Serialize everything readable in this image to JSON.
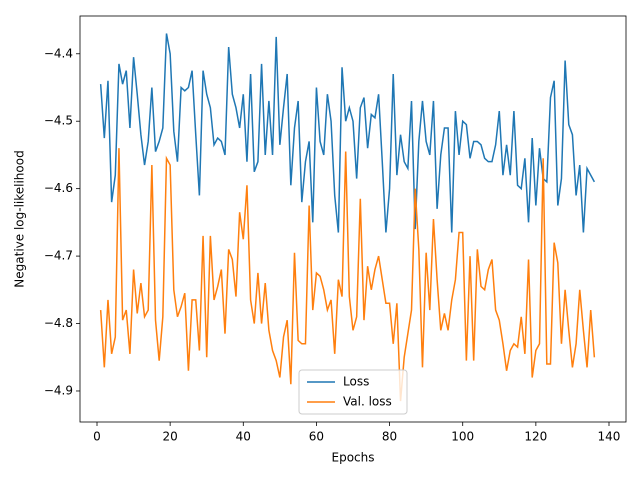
{
  "chart_data": {
    "type": "line",
    "xlabel": "Epochs",
    "ylabel": "Negative log-likelihood",
    "x": [
      1,
      2,
      3,
      4,
      5,
      6,
      7,
      8,
      9,
      10,
      11,
      12,
      13,
      14,
      15,
      16,
      17,
      18,
      19,
      20,
      21,
      22,
      23,
      24,
      25,
      26,
      27,
      28,
      29,
      30,
      31,
      32,
      33,
      34,
      35,
      36,
      37,
      38,
      39,
      40,
      41,
      42,
      43,
      44,
      45,
      46,
      47,
      48,
      49,
      50,
      51,
      52,
      53,
      54,
      55,
      56,
      57,
      58,
      59,
      60,
      61,
      62,
      63,
      64,
      65,
      66,
      67,
      68,
      69,
      70,
      71,
      72,
      73,
      74,
      75,
      76,
      77,
      78,
      79,
      80,
      81,
      82,
      83,
      84,
      85,
      86,
      87,
      88,
      89,
      90,
      91,
      92,
      93,
      94,
      95,
      96,
      97,
      98,
      99,
      100,
      101,
      102,
      103,
      104,
      105,
      106,
      107,
      108,
      109,
      110,
      111,
      112,
      113,
      114,
      115,
      116,
      117,
      118,
      119,
      120,
      121,
      122,
      123,
      124,
      125,
      126,
      127,
      128,
      129,
      130,
      131,
      132,
      133,
      134,
      135,
      136
    ],
    "series": [
      {
        "name": "Loss",
        "color": "#1f77b4",
        "values": [
          -4.445,
          -4.525,
          -4.44,
          -4.62,
          -4.58,
          -4.415,
          -4.445,
          -4.425,
          -4.51,
          -4.405,
          -4.46,
          -4.52,
          -4.565,
          -4.53,
          -4.45,
          -4.545,
          -4.53,
          -4.51,
          -4.37,
          -4.4,
          -4.515,
          -4.56,
          -4.45,
          -4.455,
          -4.45,
          -4.425,
          -4.52,
          -4.61,
          -4.425,
          -4.46,
          -4.48,
          -4.535,
          -4.525,
          -4.53,
          -4.55,
          -4.39,
          -4.46,
          -4.48,
          -4.51,
          -4.46,
          -4.56,
          -4.43,
          -4.575,
          -4.56,
          -4.415,
          -4.55,
          -4.47,
          -4.55,
          -4.375,
          -4.535,
          -4.48,
          -4.43,
          -4.595,
          -4.51,
          -4.47,
          -4.62,
          -4.56,
          -4.53,
          -4.65,
          -4.45,
          -4.53,
          -4.55,
          -4.46,
          -4.5,
          -4.61,
          -4.665,
          -4.42,
          -4.5,
          -4.48,
          -4.5,
          -4.585,
          -4.48,
          -4.465,
          -4.54,
          -4.49,
          -4.495,
          -4.46,
          -4.56,
          -4.665,
          -4.6,
          -4.43,
          -4.58,
          -4.52,
          -4.56,
          -4.57,
          -4.47,
          -4.66,
          -4.53,
          -4.47,
          -4.53,
          -4.55,
          -4.47,
          -4.63,
          -4.55,
          -4.51,
          -4.51,
          -4.665,
          -4.485,
          -4.55,
          -4.5,
          -4.505,
          -4.555,
          -4.53,
          -4.53,
          -4.535,
          -4.555,
          -4.56,
          -4.56,
          -4.535,
          -4.485,
          -4.58,
          -4.535,
          -4.58,
          -4.485,
          -4.595,
          -4.6,
          -4.555,
          -4.65,
          -4.525,
          -4.625,
          -4.54,
          -4.585,
          -4.59,
          -4.465,
          -4.44,
          -4.625,
          -4.585,
          -4.41,
          -4.505,
          -4.52,
          -4.61,
          -4.565,
          -4.665,
          -4.57,
          -4.58,
          -4.59
        ]
      },
      {
        "name": "Val. loss",
        "color": "#ff7f0e",
        "values": [
          -4.78,
          -4.865,
          -4.765,
          -4.845,
          -4.82,
          -4.54,
          -4.795,
          -4.78,
          -4.845,
          -4.72,
          -4.785,
          -4.74,
          -4.79,
          -4.78,
          -4.565,
          -4.795,
          -4.855,
          -4.79,
          -4.555,
          -4.565,
          -4.75,
          -4.79,
          -4.775,
          -4.755,
          -4.87,
          -4.765,
          -4.765,
          -4.84,
          -4.67,
          -4.85,
          -4.67,
          -4.765,
          -4.745,
          -4.72,
          -4.815,
          -4.69,
          -4.705,
          -4.76,
          -4.635,
          -4.675,
          -4.595,
          -4.765,
          -4.8,
          -4.725,
          -4.8,
          -4.74,
          -4.81,
          -4.84,
          -4.855,
          -4.88,
          -4.82,
          -4.795,
          -4.89,
          -4.695,
          -4.825,
          -4.83,
          -4.83,
          -4.625,
          -4.78,
          -4.725,
          -4.73,
          -4.75,
          -4.78,
          -4.765,
          -4.845,
          -4.735,
          -4.76,
          -4.545,
          -4.76,
          -4.81,
          -4.79,
          -4.615,
          -4.795,
          -4.715,
          -4.75,
          -4.72,
          -4.7,
          -4.735,
          -4.77,
          -4.77,
          -4.83,
          -4.77,
          -4.915,
          -4.85,
          -4.815,
          -4.78,
          -4.6,
          -4.69,
          -4.865,
          -4.695,
          -4.78,
          -4.645,
          -4.735,
          -4.81,
          -4.785,
          -4.81,
          -4.765,
          -4.735,
          -4.665,
          -4.665,
          -4.855,
          -4.7,
          -4.855,
          -4.69,
          -4.745,
          -4.75,
          -4.72,
          -4.705,
          -4.78,
          -4.795,
          -4.83,
          -4.87,
          -4.84,
          -4.83,
          -4.835,
          -4.79,
          -4.845,
          -4.705,
          -4.88,
          -4.84,
          -4.83,
          -4.555,
          -4.86,
          -4.86,
          -4.68,
          -4.71,
          -4.83,
          -4.75,
          -4.81,
          -4.865,
          -4.83,
          -4.75,
          -4.81,
          -4.865,
          -4.78,
          -4.85
        ]
      }
    ],
    "xlim": [
      -4.65,
      144.65
    ],
    "ylim": [
      -4.946,
      -4.344
    ],
    "xticks": [
      0,
      20,
      40,
      60,
      80,
      100,
      120,
      140
    ],
    "yticks": [
      {
        "value": -4.9,
        "label": "−4.9"
      },
      {
        "value": -4.8,
        "label": "−4.8"
      },
      {
        "value": -4.7,
        "label": "−4.7"
      },
      {
        "value": -4.6,
        "label": "−4.6"
      },
      {
        "value": -4.5,
        "label": "−4.5"
      },
      {
        "value": -4.4,
        "label": "−4.4"
      }
    ],
    "legend": "lower center"
  }
}
